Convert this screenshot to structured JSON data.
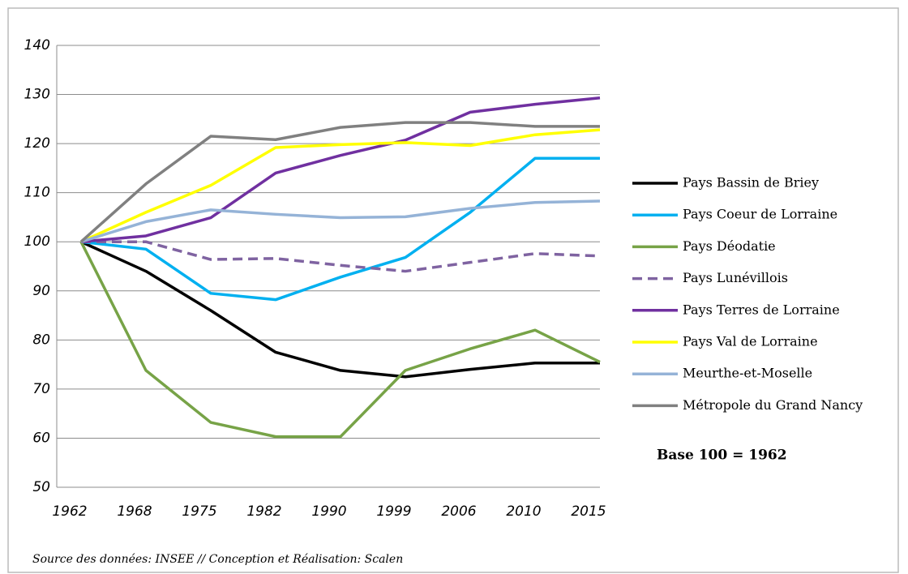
{
  "chart_data": {
    "type": "line",
    "categories": [
      "1962",
      "1968",
      "1975",
      "1982",
      "1990",
      "1999",
      "2006",
      "2010",
      "2015"
    ],
    "series": [
      {
        "name": "Pays Bassin de Briey",
        "color": "#000000",
        "values": [
          100,
          94,
          86,
          77.5,
          73.8,
          72.5,
          74,
          75.3,
          75.3
        ]
      },
      {
        "name": "Pays Coeur de Lorraine",
        "color": "#00b0f0",
        "values": [
          100,
          98.5,
          89.5,
          88.2,
          92.8,
          96.8,
          106,
          117,
          117
        ]
      },
      {
        "name": "Pays Déodatie",
        "color": "#77a347",
        "values": [
          100,
          73.8,
          63.2,
          60.3,
          60.3,
          73.8,
          78.2,
          82,
          75.5
        ]
      },
      {
        "name": "Pays Lunévillois",
        "color": "#7f63a1",
        "dashed": true,
        "values": [
          100,
          100,
          96.4,
          96.6,
          95.2,
          94,
          95.8,
          97.6,
          97.1
        ]
      },
      {
        "name": "Pays Terres de Lorraine",
        "color": "#7030a0",
        "values": [
          100,
          101.2,
          104.9,
          114,
          117.6,
          120.7,
          126.4,
          128,
          129.3
        ]
      },
      {
        "name": "Pays Val de Lorraine",
        "color": "#ffff00",
        "values": [
          100,
          106,
          111.5,
          119.2,
          119.8,
          120.2,
          119.6,
          121.8,
          122.8
        ]
      },
      {
        "name": "Meurthe-et-Moselle",
        "color": "#95b3d7",
        "values": [
          100,
          104.1,
          106.5,
          105.6,
          104.9,
          105.1,
          106.8,
          108,
          108.3
        ]
      },
      {
        "name": "Métropole du Grand Nancy",
        "color": "#808080",
        "values": [
          100,
          111.8,
          121.5,
          120.8,
          123.3,
          124.3,
          124.3,
          123.5,
          123.5
        ]
      }
    ],
    "ylim": [
      50,
      140
    ],
    "yticks": [
      50,
      60,
      70,
      80,
      90,
      100,
      110,
      120,
      130,
      140
    ],
    "grid": true,
    "legend": "right",
    "annotation": "Base 100 = 1962",
    "source": "Source des données: INSEE  // Conception et Réalisation: Scalen"
  }
}
